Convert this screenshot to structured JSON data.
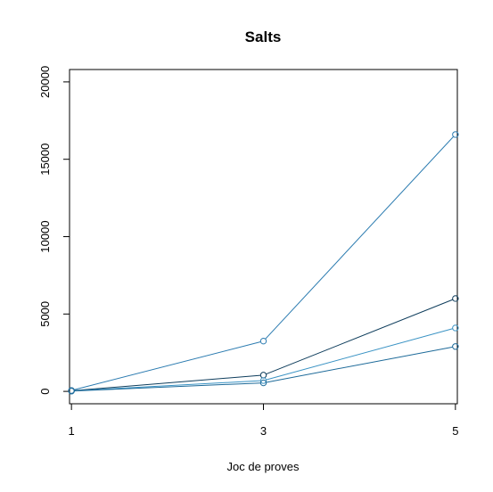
{
  "chart_data": {
    "type": "line",
    "title": "Salts",
    "xlabel": "Joc de proves",
    "ylabel": "",
    "x": [
      1,
      3,
      5
    ],
    "x_ticks": [
      "1",
      "3",
      "5"
    ],
    "y_ticks": [
      "0",
      "5000",
      "10000",
      "15000",
      "20000"
    ],
    "xlim": [
      0.98,
      5.02
    ],
    "ylim": [
      -800,
      20800
    ],
    "series": [
      {
        "values": [
          60,
          3250,
          16600
        ],
        "color": "#2b7bb0"
      },
      {
        "values": [
          40,
          1050,
          6000
        ],
        "color": "#0e3d5c"
      },
      {
        "values": [
          30,
          700,
          4100
        ],
        "color": "#3a93c4"
      },
      {
        "values": [
          20,
          550,
          2900
        ],
        "color": "#1d6a99"
      }
    ],
    "grid": false,
    "legend": "none"
  }
}
